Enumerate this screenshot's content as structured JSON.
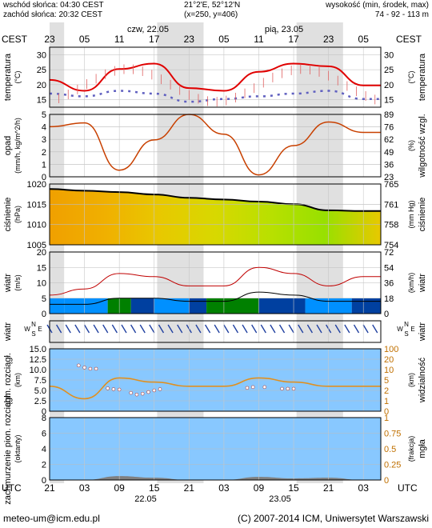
{
  "header": {
    "sunrise": "wschód słońca: 04:30 CEST",
    "sunset": "zachód słońca: 20:32 CEST",
    "coords": "21°2'E, 52°12'N",
    "grid": "(x=250, y=406)",
    "height_title": "wysokość (min, środek, max)",
    "height_values": "74 - 92 - 113 m"
  },
  "time_axis": {
    "tz_top": "CEST",
    "tz_bottom": "UTC",
    "day1_top": "czw, 22.05",
    "day2_top": "pią, 23.05",
    "day1_bottom": "22.05",
    "day2_bottom": "23.05",
    "top_hours": [
      "23",
      "05",
      "11",
      "17",
      "23",
      "05",
      "11",
      "17",
      "23",
      "05"
    ],
    "bottom_hours": [
      "21",
      "03",
      "09",
      "15",
      "21",
      "03",
      "09",
      "15",
      "21",
      "03"
    ]
  },
  "footer": {
    "email": "meteo-um@icm.edu.pl",
    "copyright": "(C) 2007-2014 ICM, Uniwersytet Warszawski"
  },
  "colors": {
    "night_band": "#e0e0e0",
    "temp_line": "#e00000",
    "rain_line": "#c84000",
    "wind_line": "#c00000",
    "visibility_line": "#e09020",
    "panel_blue": "#88c8ff",
    "water_blue": "#0090ff",
    "dark_green": "#008000",
    "dark_blue": "#0040a0"
  },
  "chart_data": [
    {
      "type": "line",
      "panel": "temperature",
      "ylabel_left": "temperatura",
      "unit_left": "(°C)",
      "ylabel_right": "temperatura",
      "unit_right": "(°C)",
      "ylim": [
        10,
        32
      ],
      "left_ticks": [
        "30",
        "25",
        "20",
        "15"
      ],
      "right_ticks": [
        "30",
        "25",
        "20",
        "15"
      ],
      "x_hours_utc": [
        0,
        6,
        12,
        18,
        24,
        30,
        36,
        42,
        48,
        54
      ],
      "series": [
        {
          "values": [
            20,
            16,
            24,
            26,
            17,
            16,
            23,
            26,
            25,
            18
          ]
        },
        {
          "values": [
            15,
            14,
            16,
            15,
            12,
            13,
            14,
            15,
            16,
            13
          ]
        }
      ]
    },
    {
      "type": "line",
      "panel": "precipitation_humidity",
      "ylabel_left": "opad",
      "unit_left": "(mm/h, kg/m^2/h)",
      "ylabel_right": "wilgotność wzgl.",
      "unit_right": "(%)",
      "ylim": [
        0,
        5
      ],
      "left_ticks": [
        "5",
        "4",
        "3",
        "2",
        "1",
        "0"
      ],
      "right_ticks": [
        "89",
        "76",
        "62",
        "49",
        "36",
        "23"
      ],
      "x_hours_utc": [
        0,
        6,
        12,
        18,
        24,
        30,
        36,
        42,
        48,
        54
      ],
      "series": [
        {
          "values": [
            76,
            80,
            30,
            62,
            89,
            68,
            25,
            56,
            81,
            70
          ]
        }
      ]
    },
    {
      "type": "area",
      "panel": "pressure",
      "ylabel_left": "ciśnienie",
      "unit_left": "(hPa)",
      "ylabel_right": "ciśnienie",
      "unit_right": "(mm Hg)",
      "ylim": [
        1004,
        1022
      ],
      "left_ticks": [
        "1020",
        "1015",
        "1010",
        "1005"
      ],
      "right_ticks": [
        "765",
        "761",
        "758",
        "754"
      ],
      "x_hours_utc": [
        0,
        6,
        12,
        18,
        24,
        30,
        36,
        42,
        48,
        54
      ],
      "series": [
        {
          "values": [
            1020.5,
            1020,
            1019.6,
            1018.9,
            1017.9,
            1017.4,
            1016.8,
            1016.0,
            1014.2,
            1014.0
          ]
        }
      ]
    },
    {
      "type": "line",
      "panel": "wind",
      "ylabel_left": "wiatr",
      "unit_left": "(m/s)",
      "ylabel_right": "wiatr",
      "unit_right": "(km/h)",
      "ylim": [
        0,
        20
      ],
      "left_ticks": [
        "20",
        "15",
        "10",
        "5",
        "0"
      ],
      "right_ticks": [
        "72",
        "54",
        "36",
        "18",
        "0"
      ],
      "x_hours_utc": [
        0,
        6,
        12,
        18,
        24,
        30,
        36,
        42,
        48,
        54
      ],
      "series": [
        {
          "values": [
            6,
            8,
            13,
            12,
            9,
            9,
            15,
            13,
            9,
            12
          ]
        },
        {
          "values": [
            3,
            3,
            5,
            5,
            4,
            4,
            7,
            6,
            4,
            4
          ]
        }
      ]
    },
    {
      "type": "line",
      "panel": "wind_direction",
      "ylabel_left": "wiatr",
      "ylabel_right": "wiatr",
      "compass": [
        "N",
        "S",
        "W",
        "E"
      ]
    },
    {
      "type": "line",
      "panel": "cloud_base_visibility",
      "ylabel_left": "chm. rozciągł.",
      "unit_left": "(km)",
      "ylabel_right": "widzialność",
      "unit_right": "(km)",
      "ylim": [
        0,
        15
      ],
      "left_ticks": [
        "15.0",
        "12.5",
        "10.0",
        "7.5",
        "5.0",
        "2.5",
        "0"
      ],
      "right_ticks": [
        "100",
        "20",
        "10",
        "5",
        "2",
        "1",
        "0"
      ],
      "x_hours_utc": [
        0,
        6,
        12,
        18,
        24,
        30,
        36,
        42,
        48,
        54
      ],
      "series": [
        {
          "values": [
            6,
            3,
            8,
            7,
            6,
            6,
            8,
            7,
            6,
            6
          ]
        }
      ]
    },
    {
      "type": "area",
      "panel": "cloudiness_fog",
      "ylabel_left": "zachmurzenie pion. rozciągł.",
      "unit_left": "(oktanty)",
      "ylabel_right": "mgła",
      "unit_right": "(frakcja)",
      "ylim": [
        0,
        8
      ],
      "left_ticks": [
        "8",
        "6",
        "4",
        "2",
        "0"
      ],
      "right_ticks": [
        "1",
        "0.75",
        "0.5",
        "0.25",
        "0"
      ],
      "x_hours_utc": [
        0,
        6,
        12,
        18,
        24,
        30,
        36,
        42,
        48,
        54
      ],
      "series": [
        {
          "values": [
            0,
            0,
            0.5,
            0.3,
            0,
            0,
            0.4,
            0.2,
            0.3,
            0
          ]
        }
      ]
    }
  ]
}
